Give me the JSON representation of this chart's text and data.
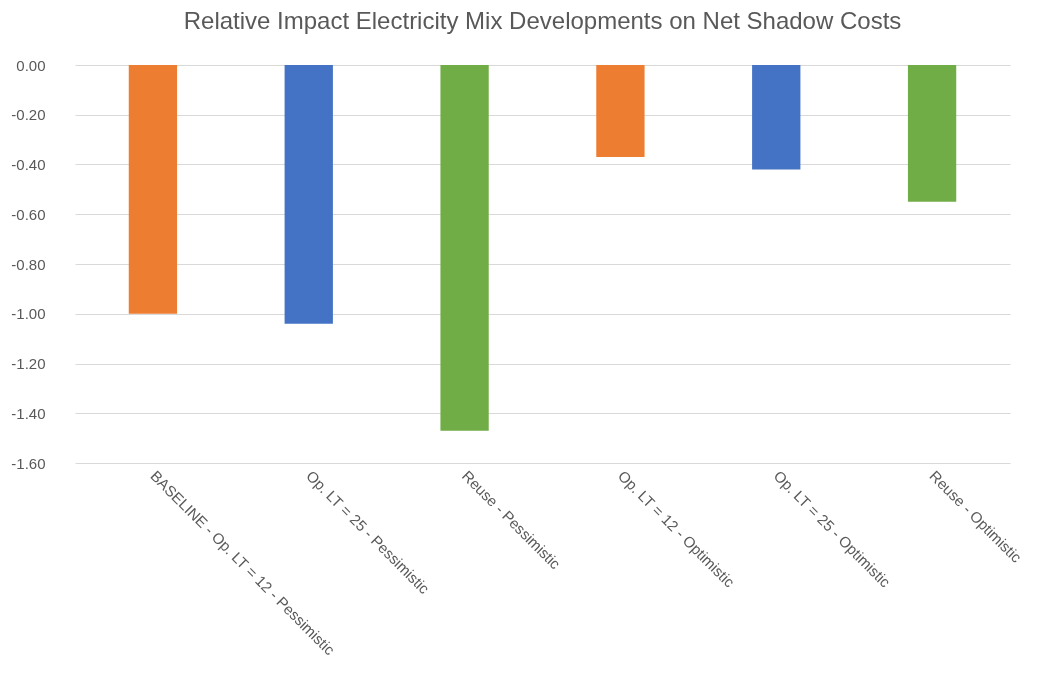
{
  "chart_data": {
    "type": "bar",
    "title": "Relative Impact Electricity Mix Developments on Net Shadow Costs",
    "categories": [
      "BASELINE - Op. LT = 12 - Pessimistic",
      "Op. LT = 25 - Pessimistic",
      "Reuse - Pessimistic",
      "Op. LT = 12 - Optimistic",
      "Op. LT = 25 - Optimistic",
      "Reuse - Optimistic"
    ],
    "values": [
      -1.0,
      -1.04,
      -1.47,
      -0.37,
      -0.42,
      -0.55
    ],
    "colors": [
      "#ed7d31",
      "#4472c4",
      "#70ad47",
      "#ed7d31",
      "#4472c4",
      "#70ad47"
    ],
    "ylim": [
      -1.6,
      0
    ],
    "yticks": [
      {
        "value": 0,
        "label": "0.00"
      },
      {
        "value": -0.2,
        "label": "-0.20"
      },
      {
        "value": -0.4,
        "label": "-0.40"
      },
      {
        "value": -0.6,
        "label": "-0.60"
      },
      {
        "value": -0.8,
        "label": "-0.80"
      },
      {
        "value": -1.0,
        "label": "-1.00"
      },
      {
        "value": -1.2,
        "label": "-1.20"
      },
      {
        "value": -1.4,
        "label": "-1.40"
      },
      {
        "value": -1.6,
        "label": "-1.60"
      }
    ],
    "grid": "y"
  }
}
